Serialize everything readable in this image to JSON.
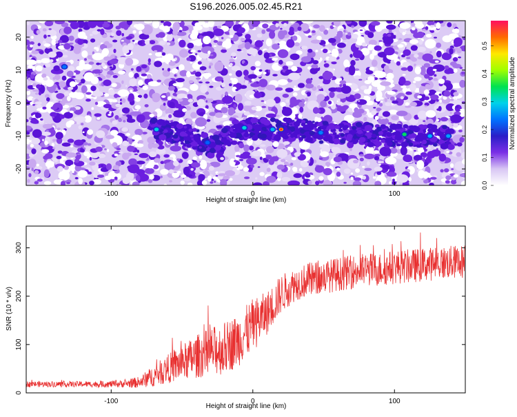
{
  "title": "S196.2026.005.02.45.R21",
  "chart_data": [
    {
      "type": "heatmap",
      "xlabel": "Height of straight line (km)",
      "ylabel": "Frequency (Hz)",
      "xlim": [
        -160,
        150
      ],
      "ylim": [
        -25,
        25
      ],
      "xticks": [
        -100,
        0,
        100
      ],
      "yticks": [
        -20,
        -10,
        0,
        10,
        20
      ],
      "colorbar": {
        "label": "Normalized spectral amplitude",
        "range": [
          0,
          0.59
        ],
        "ticks": [
          0,
          0.1,
          0.2,
          0.3,
          0.4,
          0.5
        ],
        "tick_labels": [
          "0.0",
          "0.1",
          "0.2",
          "0.3",
          "0.4",
          "0.5"
        ]
      },
      "signal_trace": {
        "description_free": true,
        "points": [
          [
            -72,
            -7.5
          ],
          [
            -60,
            -8.5
          ],
          [
            -40,
            -11
          ],
          [
            -30,
            -13
          ],
          [
            -20,
            -11
          ],
          [
            -10,
            -8
          ],
          [
            0,
            -8
          ],
          [
            10,
            -8
          ],
          [
            20,
            -8
          ],
          [
            30,
            -8
          ],
          [
            40,
            -8.5
          ],
          [
            50,
            -9
          ],
          [
            60,
            -9
          ],
          [
            70,
            -9
          ],
          [
            80,
            -9.5
          ],
          [
            90,
            -10
          ],
          [
            100,
            -10
          ],
          [
            110,
            -10
          ],
          [
            120,
            -10
          ],
          [
            130,
            -10
          ],
          [
            140,
            -10.5
          ]
        ],
        "peak": [
          20,
          -8
        ]
      }
    },
    {
      "type": "line",
      "xlabel": "Height of straight line (km)",
      "ylabel": "SNR (10 * v/v)",
      "xlim": [
        -160,
        150
      ],
      "ylim": [
        0,
        345
      ],
      "xticks": [
        -100,
        0,
        100
      ],
      "yticks": [
        0,
        100,
        200,
        300
      ],
      "series": [
        {
          "name": "SNR",
          "color": "#e83030",
          "x": [
            -160,
            -140,
            -120,
            -100,
            -90,
            -80,
            -70,
            -60,
            -50,
            -40,
            -30,
            -20,
            -10,
            0,
            10,
            20,
            30,
            40,
            50,
            60,
            70,
            80,
            90,
            100,
            110,
            120,
            130,
            140,
            150
          ],
          "values": [
            18,
            18,
            18,
            18,
            19,
            22,
            35,
            50,
            62,
            75,
            85,
            92,
            110,
            140,
            165,
            205,
            225,
            235,
            240,
            245,
            250,
            255,
            255,
            260,
            262,
            265,
            268,
            270,
            272
          ],
          "noise": [
            6,
            6,
            6,
            7,
            8,
            12,
            22,
            30,
            38,
            45,
            50,
            55,
            55,
            55,
            45,
            40,
            35,
            35,
            35,
            35,
            35,
            35,
            35,
            35,
            35,
            35,
            35,
            35,
            35
          ]
        }
      ]
    }
  ]
}
